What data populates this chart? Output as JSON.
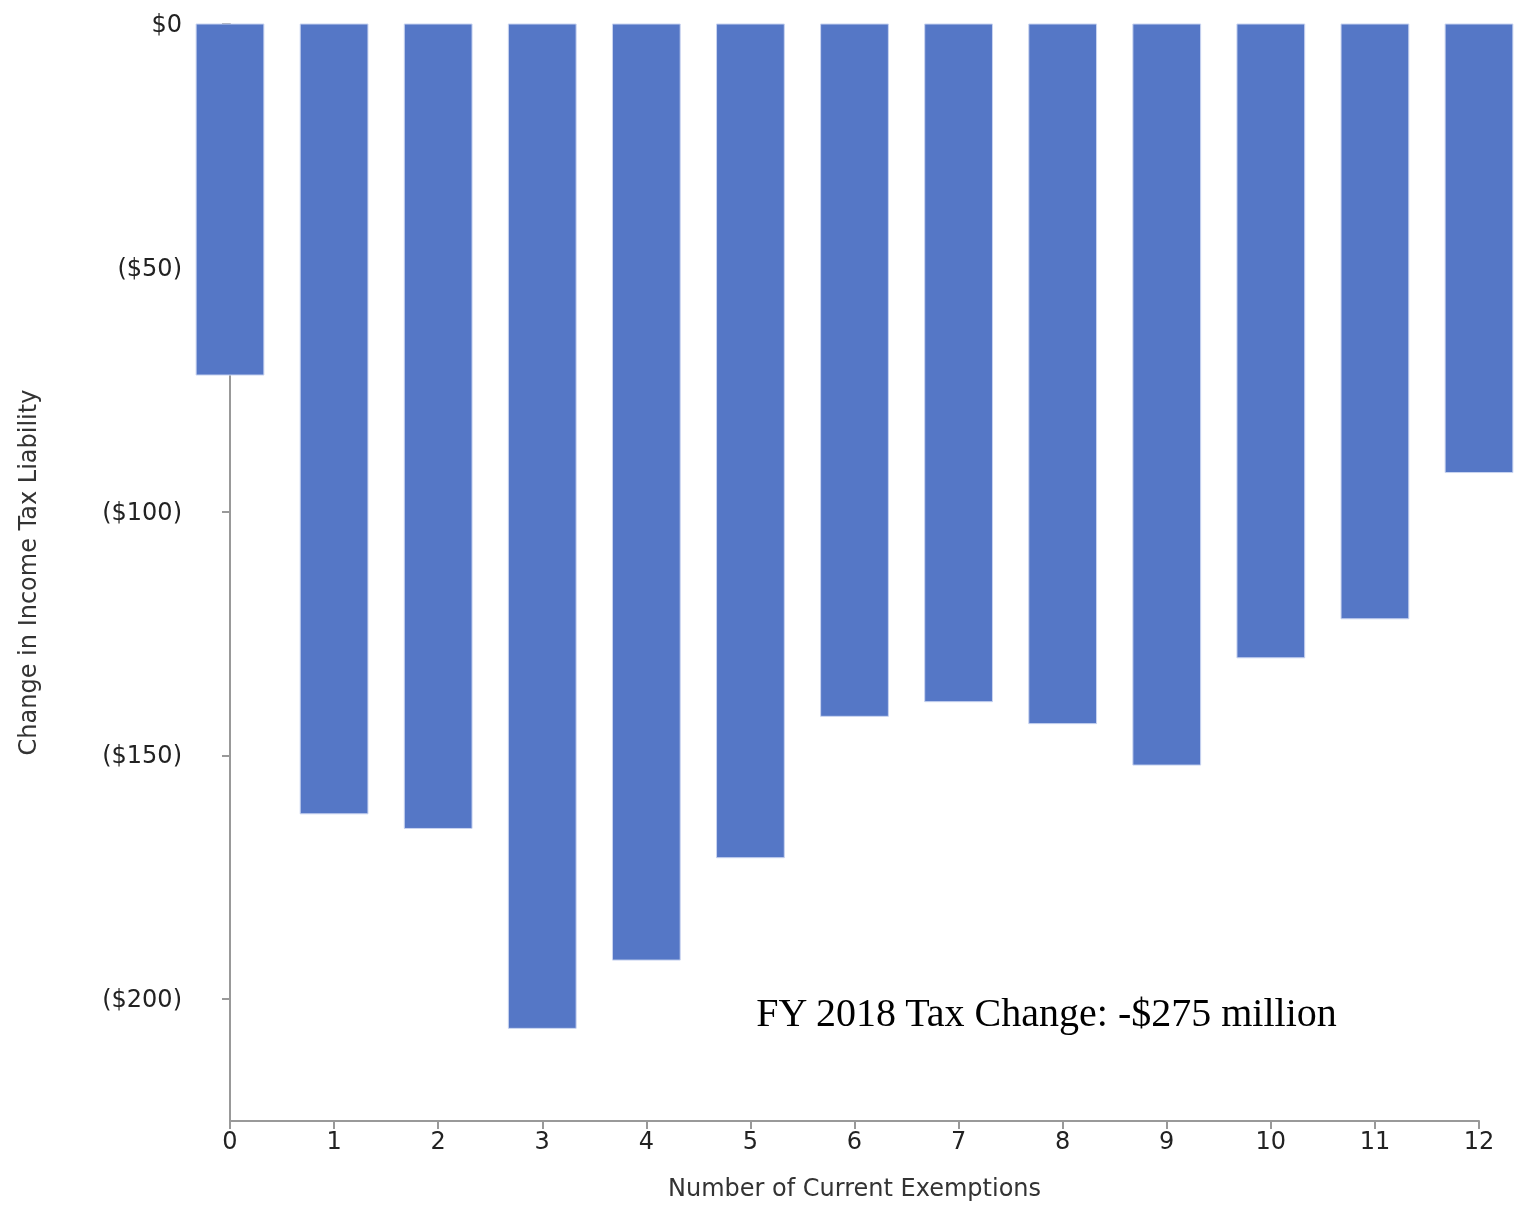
{
  "chart_data": {
    "type": "bar",
    "xlabel": "Number of Current Exemptions",
    "ylabel": "Change in Income Tax Liability",
    "x": [
      0,
      1,
      2,
      3,
      4,
      5,
      6,
      7,
      8,
      9,
      10,
      11,
      12
    ],
    "values": [
      -72,
      -162,
      -165,
      -206,
      -192,
      -171,
      -142,
      -139,
      -143.5,
      -152,
      -130,
      -122,
      -92
    ],
    "color": "#5577c6",
    "xlim": [
      0,
      12
    ],
    "xticks": [
      0,
      1,
      2,
      3,
      4,
      5,
      6,
      7,
      8,
      9,
      10,
      11,
      12
    ],
    "ylim": [
      -225,
      0
    ],
    "yticks": [
      {
        "value": 0,
        "label": "$0"
      },
      {
        "value": -50,
        "label": "($50)"
      },
      {
        "value": -100,
        "label": "($100)"
      },
      {
        "value": -150,
        "label": "($150)"
      },
      {
        "value": -200,
        "label": "($200)"
      }
    ],
    "grid": false,
    "annotations": [
      "FY 2018 Tax Change: -$275 million"
    ]
  }
}
